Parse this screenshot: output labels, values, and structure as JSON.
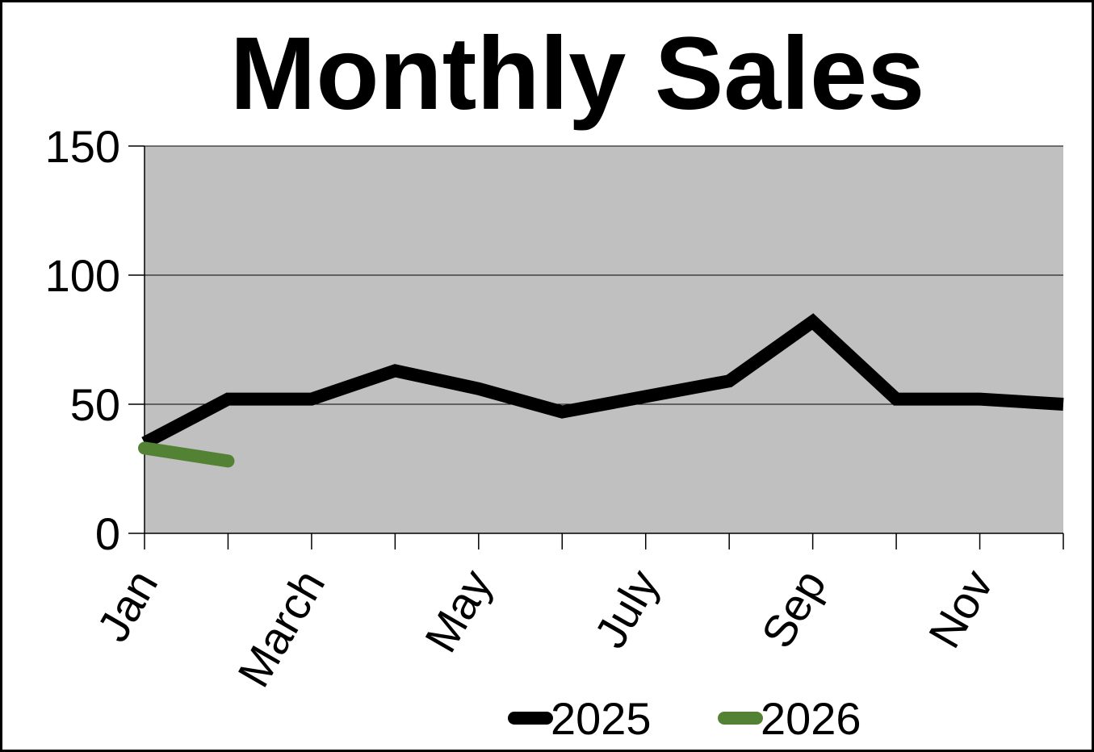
{
  "chart_data": {
    "type": "line",
    "title": "Monthly Sales",
    "categories": [
      "Jan",
      null,
      "March",
      null,
      "May",
      null,
      "July",
      null,
      "Sep",
      null,
      "Nov",
      null
    ],
    "series": [
      {
        "name": "2025",
        "color": "#000000",
        "values": [
          35,
          52,
          52,
          63,
          56,
          47,
          53,
          59,
          82,
          52,
          52,
          50
        ]
      },
      {
        "name": "2026",
        "color": "#548235",
        "values": [
          33,
          28,
          null,
          null,
          null,
          null,
          null,
          null,
          null,
          null,
          null,
          null
        ]
      }
    ],
    "ylim": [
      0,
      150
    ],
    "yticks": [
      0,
      50,
      100,
      150
    ],
    "grid": true,
    "plot_background": "#c0c0c0",
    "legend": "bottom"
  }
}
